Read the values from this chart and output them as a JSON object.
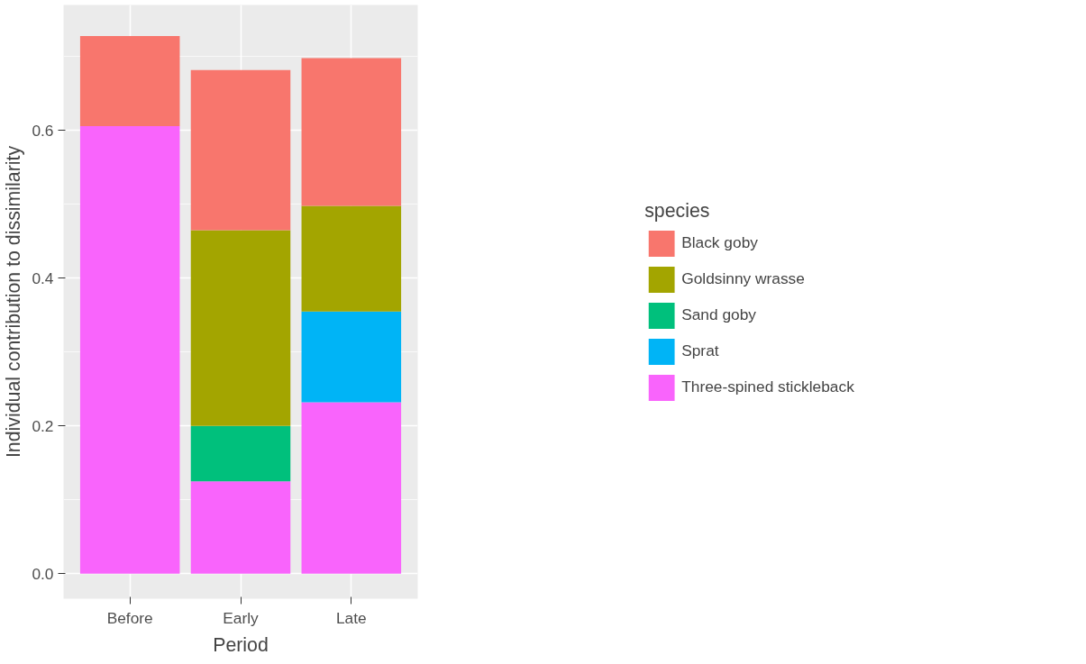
{
  "chart_data": {
    "type": "bar",
    "stacked": true,
    "xlabel": "Period",
    "ylabel": "Individual contribution to dissimilarity",
    "legend_title": "species",
    "categories": [
      "Before",
      "Early",
      "Late"
    ],
    "series": [
      {
        "name": "Three-spined stickleback",
        "color": "#f964fc",
        "values": [
          0.606,
          0.125,
          0.232
        ]
      },
      {
        "name": "Sprat",
        "color": "#00b4f6",
        "values": [
          null,
          null,
          0.123
        ]
      },
      {
        "name": "Sand goby",
        "color": "#00c07c",
        "values": [
          null,
          0.075,
          null
        ]
      },
      {
        "name": "Goldsinny wrasse",
        "color": "#a3a500",
        "values": [
          null,
          0.265,
          0.143
        ]
      },
      {
        "name": "Black goby",
        "color": "#f8766d",
        "values": [
          0.122,
          0.217,
          0.2
        ]
      }
    ],
    "ylim": [
      -0.034,
      0.77
    ],
    "yticks": [
      {
        "value": 0,
        "label": "0.0"
      },
      {
        "value": 0.2,
        "label": "0.2"
      },
      {
        "value": 0.4,
        "label": "0.4"
      },
      {
        "value": 0.6,
        "label": "0.6"
      }
    ],
    "grid": true,
    "legend": "right"
  }
}
